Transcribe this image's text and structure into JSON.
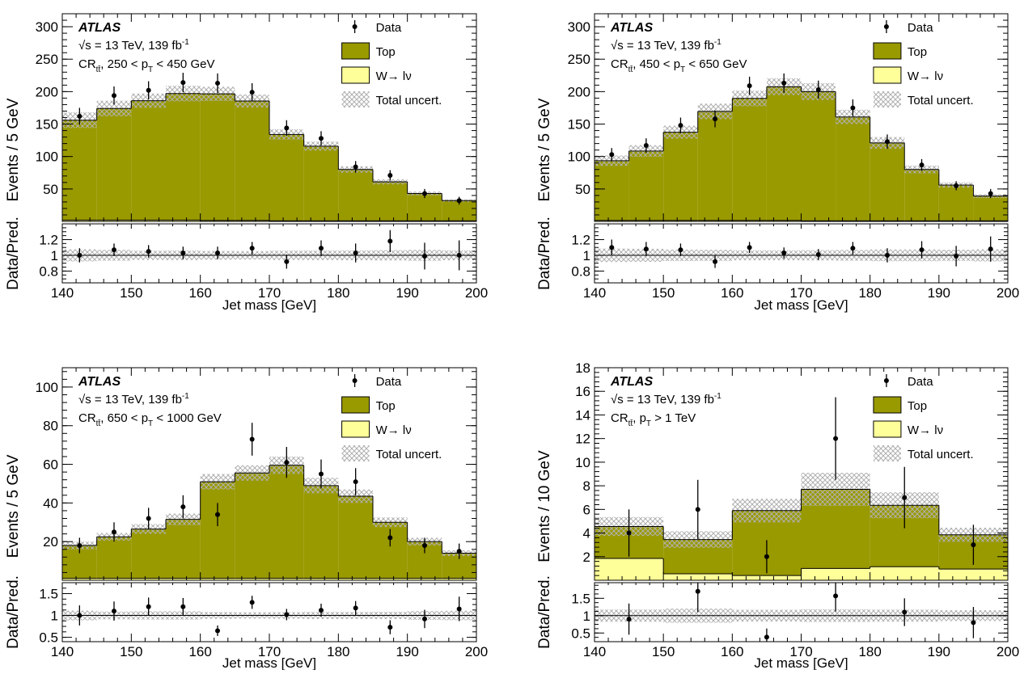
{
  "colors": {
    "top": "#999900",
    "w": "#ffff99",
    "unc": "#c8c8c8",
    "data": "#000000"
  },
  "chart_data": [
    {
      "type": "bar",
      "experiment": "ATLAS",
      "energy_lumi": "√s = 13 TeV, 139 fb",
      "energy_lumi_sup": "-1",
      "region_prefix": "CR",
      "region_sub": "tt̄",
      "region_range_pre": ", 250 < p",
      "region_range_sub": "T",
      "region_range_post": " < 450 GeV",
      "xlabel": "Jet mass [GeV]",
      "ylabel": "Events /  5 GeV",
      "ratio_ylabel": "Data/Pred.",
      "legend": {
        "data": "Data",
        "top": "Top",
        "w": "W→ lν",
        "unc": "Total uncert."
      },
      "xlim": [
        140,
        200
      ],
      "ylim": [
        0,
        320
      ],
      "yticks": [
        50,
        100,
        150,
        200,
        250,
        300
      ],
      "ratio_ylim": [
        0.65,
        1.4
      ],
      "ratio_yticks": [
        0.8,
        1,
        1.2
      ],
      "ratio_yticklabels": [
        "0.8",
        "1",
        "1.2"
      ],
      "xticks": [
        140,
        150,
        160,
        170,
        180,
        190,
        200
      ],
      "bin_edges": [
        140,
        145,
        150,
        155,
        160,
        165,
        170,
        175,
        180,
        185,
        190,
        195,
        200
      ],
      "top": [
        154,
        172,
        184,
        195,
        195,
        184,
        133,
        115,
        79,
        60,
        42,
        31
      ],
      "w": [
        2,
        2,
        2,
        2,
        1.5,
        1.5,
        1,
        1,
        1,
        1,
        1,
        1
      ],
      "unc": [
        12,
        12,
        11,
        12,
        11,
        10,
        8,
        7,
        5,
        4,
        3,
        2
      ],
      "data": [
        162,
        194,
        202,
        214,
        213,
        199,
        144,
        128,
        84,
        71,
        43,
        32
      ],
      "data_err": [
        13,
        14,
        14,
        15,
        15,
        14,
        12,
        11,
        9,
        8,
        7,
        6
      ],
      "ratio": [
        1.0,
        1.07,
        1.05,
        1.03,
        1.03,
        1.09,
        0.92,
        1.09,
        1.03,
        1.18,
        0.99,
        1.0
      ],
      "ratio_err": [
        0.09,
        0.08,
        0.08,
        0.08,
        0.08,
        0.08,
        0.09,
        0.1,
        0.12,
        0.14,
        0.17,
        0.19
      ]
    },
    {
      "type": "bar",
      "experiment": "ATLAS",
      "energy_lumi": "√s = 13 TeV, 139 fb",
      "energy_lumi_sup": "-1",
      "region_prefix": "CR",
      "region_sub": "tt̄",
      "region_range_pre": ", 450 < p",
      "region_range_sub": "T",
      "region_range_post": " < 650 GeV",
      "xlabel": "Jet mass [GeV]",
      "ylabel": "Events /  5 GeV",
      "ratio_ylabel": "Data/Pred.",
      "legend": {
        "data": "Data",
        "top": "Top",
        "w": "W→ lν",
        "unc": "Total uncert."
      },
      "xlim": [
        140,
        200
      ],
      "ylim": [
        0,
        320
      ],
      "yticks": [
        50,
        100,
        150,
        200,
        250,
        300
      ],
      "ratio_ylim": [
        0.65,
        1.4
      ],
      "ratio_yticks": [
        0.8,
        1,
        1.2
      ],
      "ratio_yticklabels": [
        "0.8",
        "1",
        "1.2"
      ],
      "xticks": [
        140,
        150,
        160,
        170,
        180,
        190,
        200
      ],
      "bin_edges": [
        140,
        145,
        150,
        155,
        160,
        165,
        170,
        175,
        180,
        185,
        190,
        195,
        200
      ],
      "top": [
        92,
        107,
        136,
        168,
        188,
        206,
        199,
        160,
        120,
        79,
        55,
        38
      ],
      "w": [
        1.5,
        1.5,
        1.5,
        1.5,
        1.5,
        1.5,
        1,
        1,
        1,
        1,
        1,
        1
      ],
      "unc": [
        8,
        9,
        10,
        12,
        12,
        13,
        13,
        11,
        9,
        6,
        4,
        3
      ],
      "data": [
        103,
        117,
        148,
        158,
        209,
        213,
        203,
        175,
        123,
        87,
        55,
        43
      ],
      "data_err": [
        10,
        11,
        12,
        13,
        14,
        15,
        14,
        13,
        11,
        9,
        7,
        7
      ],
      "ratio": [
        1.1,
        1.08,
        1.07,
        0.92,
        1.1,
        1.03,
        1.01,
        1.09,
        1.0,
        1.07,
        0.99,
        1.08
      ],
      "ratio_err": [
        0.1,
        0.09,
        0.08,
        0.08,
        0.07,
        0.07,
        0.07,
        0.08,
        0.09,
        0.11,
        0.13,
        0.16
      ]
    },
    {
      "type": "bar",
      "experiment": "ATLAS",
      "energy_lumi": "√s = 13 TeV, 139 fb",
      "energy_lumi_sup": "-1",
      "region_prefix": "CR",
      "region_sub": "tt̄",
      "region_range_pre": ", 650 < p",
      "region_range_sub": "T",
      "region_range_post": " < 1000 GeV",
      "xlabel": "Jet mass [GeV]",
      "ylabel": "Events /  5 GeV",
      "ratio_ylabel": "Data/Pred.",
      "legend": {
        "data": "Data",
        "top": "Top",
        "w": "W→ lν",
        "unc": "Total uncert."
      },
      "xlim": [
        140,
        200
      ],
      "ylim": [
        0,
        110
      ],
      "yticks": [
        20,
        40,
        60,
        80,
        100
      ],
      "ratio_ylim": [
        0.4,
        1.75
      ],
      "ratio_yticks": [
        0.5,
        1,
        1.5
      ],
      "ratio_yticklabels": [
        "0.5",
        "1",
        "1.5"
      ],
      "xticks": [
        140,
        150,
        160,
        170,
        180,
        190,
        200
      ],
      "bin_edges": [
        140,
        145,
        150,
        155,
        160,
        165,
        170,
        175,
        180,
        185,
        190,
        195,
        200
      ],
      "top": [
        17,
        21.5,
        25.5,
        30.5,
        50,
        54.5,
        58.5,
        48,
        42.5,
        29,
        19,
        13
      ],
      "w": [
        1,
        1,
        1,
        1,
        1,
        1,
        1,
        1,
        1,
        1,
        1,
        1
      ],
      "unc": [
        2,
        2,
        2.5,
        3,
        4,
        4,
        4.5,
        4,
        3.5,
        2.5,
        2,
        1.5
      ],
      "data": [
        18,
        25,
        32,
        38,
        34,
        73,
        61,
        55,
        51,
        22,
        18,
        15
      ],
      "data_err": [
        4,
        5,
        5.5,
        6,
        6,
        8.5,
        8,
        7.5,
        7,
        4.5,
        4,
        4
      ],
      "ratio": [
        1.0,
        1.1,
        1.2,
        1.2,
        0.65,
        1.3,
        1.02,
        1.12,
        1.17,
        0.73,
        0.92,
        1.15
      ],
      "ratio_err": [
        0.23,
        0.22,
        0.21,
        0.2,
        0.12,
        0.15,
        0.13,
        0.15,
        0.16,
        0.16,
        0.21,
        0.28
      ]
    },
    {
      "type": "bar",
      "experiment": "ATLAS",
      "energy_lumi": "√s = 13 TeV, 139 fb",
      "energy_lumi_sup": "-1",
      "region_prefix": "CR",
      "region_sub": "tt̄",
      "region_range_pre": ", p",
      "region_range_sub": "T",
      "region_range_post": " > 1 TeV",
      "xlabel": "Jet mass [GeV]",
      "ylabel": "Events / 10 GeV",
      "ratio_ylabel": "Data/Pred.",
      "legend": {
        "data": "Data",
        "top": "Top",
        "w": "W→ lν",
        "unc": "Total uncert."
      },
      "xlim": [
        140,
        200
      ],
      "ylim": [
        0,
        18
      ],
      "yticks": [
        2,
        4,
        6,
        8,
        10,
        12,
        14,
        16,
        18
      ],
      "ratio_ylim": [
        0.25,
        1.95
      ],
      "ratio_yticks": [
        0.5,
        1,
        1.5
      ],
      "ratio_yticklabels": [
        "0.5",
        "1",
        "1.5"
      ],
      "xticks": [
        140,
        150,
        160,
        170,
        180,
        190,
        200
      ],
      "bin_edges": [
        140,
        150,
        160,
        170,
        180,
        190,
        200
      ],
      "top": [
        2.7,
        2.9,
        5.5,
        6.7,
        5.2,
        2.9
      ],
      "w": [
        1.85,
        0.55,
        0.4,
        1.0,
        1.15,
        0.95
      ],
      "unc": [
        0.8,
        0.7,
        1.0,
        1.4,
        1.1,
        0.6
      ],
      "data": [
        4,
        6,
        2,
        12,
        7,
        3
      ],
      "data_err": [
        2,
        2.5,
        1.4,
        3.5,
        2.6,
        1.7
      ],
      "ratio": [
        0.9,
        1.7,
        0.38,
        1.57,
        1.1,
        0.8
      ],
      "ratio_err": [
        0.45,
        0.6,
        0.25,
        0.45,
        0.4,
        0.45
      ]
    }
  ]
}
